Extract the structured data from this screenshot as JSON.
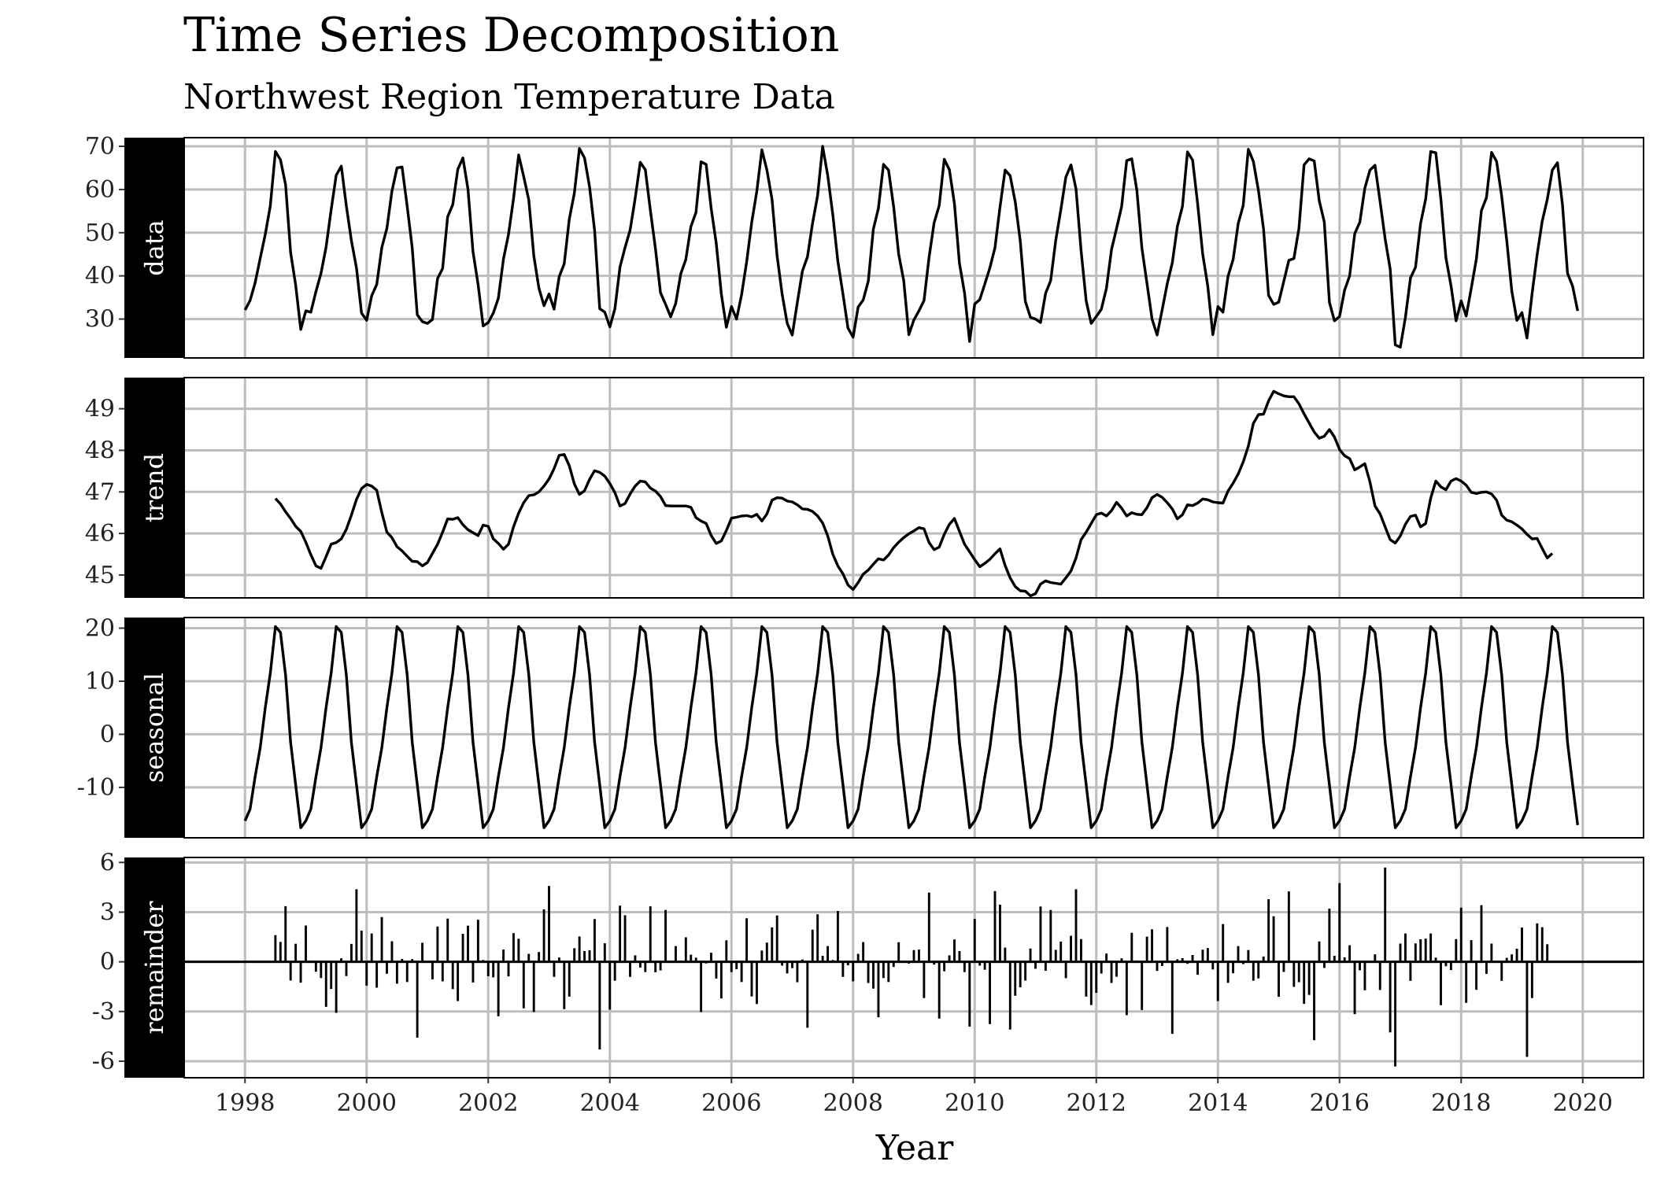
{
  "chart_data": {
    "type": "line",
    "title": "Time Series Decomposition",
    "subtitle": "Northwest Region Temperature Data",
    "xlabel": "Year",
    "xlim": [
      1997,
      2021
    ],
    "x_ticks": [
      1998,
      2000,
      2002,
      2004,
      2006,
      2008,
      2010,
      2012,
      2014,
      2016,
      2018,
      2020
    ],
    "time": {
      "start_year": 1998,
      "frequency": 12
    },
    "grid": true,
    "panels": [
      {
        "name": "data",
        "ylim": [
          21,
          72
        ],
        "y_ticks": [
          30,
          40,
          50,
          60,
          70
        ],
        "y_tick_labels": [
          "30",
          "40",
          "50",
          "60",
          "70"
        ],
        "values": [
          32.1,
          34.3,
          38.4,
          44.1,
          49.6,
          56.2,
          68.8,
          66.9,
          61.1,
          45.4,
          37.9,
          27.6,
          31.9,
          31.6,
          36.4,
          40.6,
          46.6,
          55.3,
          63.3,
          65.4,
          56.2,
          48.2,
          41.8,
          31.4,
          29.7,
          35.4,
          38.0,
          46.6,
          51.0,
          59.6,
          65.0,
          65.2,
          56.1,
          46.5,
          31.0,
          29.4,
          29.0,
          29.9,
          39.4,
          41.7,
          53.7,
          56.5,
          64.7,
          67.3,
          60.1,
          45.6,
          38.0,
          28.4,
          29.2,
          31.4,
          34.8,
          43.9,
          49.6,
          57.9,
          68.0,
          63.0,
          57.6,
          44.6,
          37.2,
          33.1,
          35.8,
          32.3,
          39.8,
          42.8,
          53.1,
          59.2,
          69.5,
          67.3,
          60.6,
          50.5,
          32.4,
          31.6,
          28.2,
          32.4,
          42.0,
          46.6,
          50.6,
          57.9,
          66.3,
          64.6,
          55.1,
          46.3,
          36.1,
          33.4,
          30.5,
          33.6,
          40.5,
          43.8,
          51.4,
          54.7,
          66.4,
          65.8,
          55.6,
          47.6,
          35.8,
          28.1,
          32.9,
          30.0,
          35.6,
          43.3,
          52.4,
          59.5,
          69.2,
          64.5,
          57.7,
          44.7,
          35.8,
          29.0,
          26.3,
          33.8,
          41.1,
          44.4,
          52.1,
          58.6,
          70.0,
          63.2,
          54.2,
          43.4,
          35.8,
          27.9,
          25.8,
          32.8,
          34.4,
          38.8,
          50.8,
          55.6,
          65.8,
          64.5,
          56.0,
          45.0,
          38.9,
          26.4,
          29.8,
          31.9,
          34.3,
          44.3,
          52.3,
          56.3,
          67.0,
          64.6,
          56.8,
          42.9,
          36.0,
          24.8,
          33.5,
          34.5,
          38.1,
          41.9,
          46.5,
          55.9,
          64.5,
          63.2,
          57.1,
          48.0,
          34.1,
          30.4,
          30.0,
          29.2,
          36.0,
          38.9,
          48.2,
          55.3,
          62.9,
          65.7,
          60.1,
          45.9,
          34.2,
          29.0,
          30.6,
          32.3,
          37.1,
          46.1,
          51.0,
          56.0,
          66.7,
          67.1,
          59.8,
          46.4,
          38.3,
          30.0,
          26.3,
          32.1,
          38.2,
          43.0,
          51.4,
          56.1,
          68.7,
          66.8,
          56.7,
          45.1,
          37.6,
          26.4,
          32.9,
          31.6,
          39.9,
          43.8,
          52.1,
          56.3,
          69.3,
          66.5,
          59.7,
          50.9,
          35.5,
          33.4,
          33.9,
          38.7,
          43.6,
          44.0,
          51.0,
          65.7,
          67.1,
          66.6,
          57.4,
          52.5,
          33.9,
          29.6,
          30.6,
          36.7,
          40.0,
          49.8,
          52.4,
          60.3,
          64.5,
          65.6,
          57.2,
          48.6,
          41.6,
          24.0,
          23.5,
          30.3,
          39.5,
          42.0,
          52.1,
          57.8,
          68.8,
          68.5,
          57.8,
          44.2,
          37.7,
          29.6,
          34.2,
          30.7,
          37.1,
          43.9,
          55.1,
          58.1,
          68.6,
          66.5,
          58.4,
          48.2,
          36.5,
          29.7,
          31.5,
          25.6,
          35.9,
          44.9,
          52.6,
          57.7,
          64.5,
          66.2,
          56.5,
          40.6,
          37.6,
          31.9
        ]
      },
      {
        "name": "trend",
        "ylim": [
          44.45,
          49.75
        ],
        "y_ticks": [
          45,
          46,
          47,
          48,
          49
        ],
        "y_tick_labels": [
          "45",
          "46",
          "47",
          "48",
          "49"
        ],
        "start_index": 6,
        "values": [
          46.84,
          46.71,
          46.52,
          46.36,
          46.17,
          46.05,
          45.79,
          45.49,
          45.22,
          45.16,
          45.44,
          45.74,
          45.78,
          45.87,
          46.1,
          46.44,
          46.82,
          47.08,
          47.18,
          47.14,
          47.04,
          46.5,
          46.03,
          45.9,
          45.68,
          45.58,
          45.45,
          45.33,
          45.32,
          45.22,
          45.3,
          45.52,
          45.74,
          46.03,
          46.35,
          46.34,
          46.38,
          46.21,
          46.09,
          46.02,
          45.95,
          46.2,
          46.17,
          45.87,
          45.76,
          45.62,
          45.74,
          46.16,
          46.49,
          46.74,
          46.91,
          46.93,
          47.0,
          47.14,
          47.31,
          47.56,
          47.88,
          47.9,
          47.63,
          47.19,
          46.94,
          47.03,
          47.3,
          47.51,
          47.47,
          47.38,
          47.2,
          46.98,
          46.66,
          46.72,
          46.95,
          47.14,
          47.26,
          47.24,
          47.09,
          47.02,
          46.89,
          46.67,
          46.66,
          46.66,
          46.66,
          46.66,
          46.63,
          46.38,
          46.3,
          46.24,
          45.95,
          45.76,
          45.82,
          46.07,
          46.37,
          46.39,
          46.42,
          46.43,
          46.4,
          46.46,
          46.3,
          46.47,
          46.8,
          46.86,
          46.85,
          46.78,
          46.76,
          46.69,
          46.59,
          46.58,
          46.53,
          46.42,
          46.25,
          45.94,
          45.5,
          45.22,
          45.03,
          44.76,
          44.65,
          44.82,
          45.02,
          45.12,
          45.26,
          45.39,
          45.36,
          45.48,
          45.66,
          45.79,
          45.9,
          45.99,
          46.06,
          46.14,
          46.11,
          45.78,
          45.61,
          45.67,
          45.98,
          46.22,
          46.36,
          46.05,
          45.74,
          45.56,
          45.37,
          45.2,
          45.28,
          45.38,
          45.51,
          45.63,
          45.23,
          44.93,
          44.72,
          44.62,
          44.61,
          44.5,
          44.55,
          44.78,
          44.86,
          44.82,
          44.8,
          44.78,
          44.93,
          45.1,
          45.41,
          45.85,
          46.03,
          46.24,
          46.45,
          46.49,
          46.42,
          46.55,
          46.75,
          46.61,
          46.42,
          46.5,
          46.46,
          46.45,
          46.62,
          46.86,
          46.94,
          46.87,
          46.74,
          46.59,
          46.35,
          46.45,
          46.69,
          46.67,
          46.73,
          46.83,
          46.81,
          46.76,
          46.74,
          46.73,
          47.02,
          47.21,
          47.43,
          47.72,
          48.1,
          48.65,
          48.86,
          48.87,
          49.19,
          49.42,
          49.36,
          49.31,
          49.29,
          49.29,
          49.12,
          48.88,
          48.66,
          48.44,
          48.29,
          48.34,
          48.5,
          48.32,
          48.02,
          47.87,
          47.8,
          47.53,
          47.6,
          47.68,
          47.24,
          46.66,
          46.47,
          46.16,
          45.85,
          45.77,
          45.94,
          46.22,
          46.41,
          46.44,
          46.16,
          46.24,
          46.85,
          47.26,
          47.12,
          47.05,
          47.26,
          47.32,
          47.26,
          47.16,
          46.99,
          46.96,
          46.99,
          47.0,
          46.95,
          46.8,
          46.44,
          46.32,
          46.28,
          46.2,
          46.11,
          45.98,
          45.87,
          45.88,
          45.64,
          45.41,
          45.52
        ]
      },
      {
        "name": "seasonal",
        "ylim": [
          -19.5,
          22.0
        ],
        "y_ticks": [
          -10,
          0,
          10,
          20
        ],
        "y_tick_labels": [
          "-10",
          "0",
          "10",
          "20"
        ],
        "pattern": [
          -16.3,
          -14.1,
          -8.0,
          -2.5,
          5.0,
          11.5,
          20.3,
          19.2,
          11.2,
          -1.5,
          -9.5,
          -17.6
        ],
        "end_value": -17.1
      },
      {
        "name": "remainder",
        "ylim": [
          -7.0,
          6.3
        ],
        "y_ticks": [
          -6,
          -3,
          0,
          3,
          6
        ],
        "y_tick_labels": [
          "-6",
          "-3",
          "0",
          "3",
          "6"
        ],
        "start_index": 6,
        "values": [
          1.61,
          1.2,
          3.36,
          -1.13,
          1.09,
          -1.26,
          2.19,
          0.08,
          -0.6,
          -0.98,
          -2.72,
          -1.64,
          -3.08,
          0.21,
          -0.86,
          1.08,
          4.38,
          1.88,
          -1.44,
          1.71,
          -1.56,
          2.7,
          -0.72,
          1.24,
          -1.32,
          0.17,
          -1.22,
          0.16,
          -4.58,
          1.15,
          0.02,
          -1.06,
          2.13,
          -1.18,
          2.61,
          -1.65,
          -2.37,
          1.69,
          2.18,
          -1.25,
          2.54,
          0.11,
          -0.87,
          -0.94,
          -3.29,
          0.74,
          -0.88,
          1.73,
          1.39,
          -2.81,
          0.48,
          -3.03,
          0.59,
          3.17,
          4.58,
          -0.91,
          0.26,
          -2.86,
          -2.1,
          0.82,
          1.53,
          0.65,
          0.7,
          2.58,
          -5.29,
          1.12,
          -2.89,
          -1.14,
          3.39,
          2.81,
          -0.91,
          0.39,
          -0.35,
          -0.62,
          3.35,
          -0.63,
          -0.52,
          3.13,
          0.03,
          0.95,
          0.08,
          1.48,
          0.43,
          0.25,
          -3.03,
          -0.1,
          0.55,
          -1.01,
          -2.21,
          1.3,
          -0.62,
          -0.45,
          -1.22,
          2.63,
          -2.09,
          -2.55,
          0.68,
          1.16,
          2.08,
          2.8,
          -0.23,
          -0.7,
          -0.38,
          -1.23,
          0.14,
          -3.98,
          1.94,
          2.87,
          0.36,
          0.95,
          0.11,
          3.07,
          -0.91,
          -0.21,
          -1.18,
          0.48,
          1.19,
          -1.28,
          -1.62,
          -3.35,
          -0.98,
          -1.22,
          -0.31,
          1.18,
          0.06,
          -0.11,
          0.71,
          0.74,
          -2.19,
          4.18,
          -0.17,
          -3.43,
          -0.57,
          0.39,
          1.35,
          0.65,
          -0.62,
          -3.91,
          2.59,
          -0.23,
          -0.48,
          -3.76,
          4.27,
          3.45,
          0.86,
          -4.09,
          -2.05,
          -1.54,
          -1.13,
          0.8,
          -0.42,
          3.34,
          -0.54,
          3.13,
          0.72,
          1.22,
          -0.99,
          1.57,
          4.38,
          1.37,
          -2.1,
          -2.61,
          -1.87,
          -0.71,
          0.5,
          -1.28,
          -0.9,
          0.21,
          -3.22,
          1.75,
          0.08,
          -2.91,
          1.52,
          1.96,
          -0.55,
          -0.25,
          2.1,
          -4.35,
          0.15,
          0.22,
          -0.12,
          0.41,
          -0.78,
          0.73,
          0.83,
          -0.46,
          -2.37,
          2.28,
          -1.27,
          -0.69,
          0.95,
          -0.14,
          0.71,
          -1.14,
          -1.0,
          0.32,
          3.78,
          2.75,
          -2.11,
          -0.61,
          4.25,
          -1.51,
          -1.23,
          -2.54,
          -2.0,
          -4.73,
          1.23,
          -0.37,
          3.21,
          0.36,
          4.75,
          0.27,
          1.0,
          -3.16,
          -0.51,
          -1.72,
          0.05,
          0.45,
          -1.7,
          5.69,
          -4.26,
          -6.32,
          1.1,
          1.71,
          -1.15,
          1.11,
          1.36,
          1.4,
          1.71,
          0.25,
          -2.62,
          -0.27,
          -0.5,
          1.37,
          3.27,
          -2.48,
          1.31,
          -1.69,
          3.42,
          -0.73,
          1.1,
          0.04,
          -1.15,
          0.24,
          0.45,
          0.79,
          2.07,
          -5.74,
          -2.19,
          2.32,
          2.09,
          1.06
        ]
      }
    ]
  }
}
